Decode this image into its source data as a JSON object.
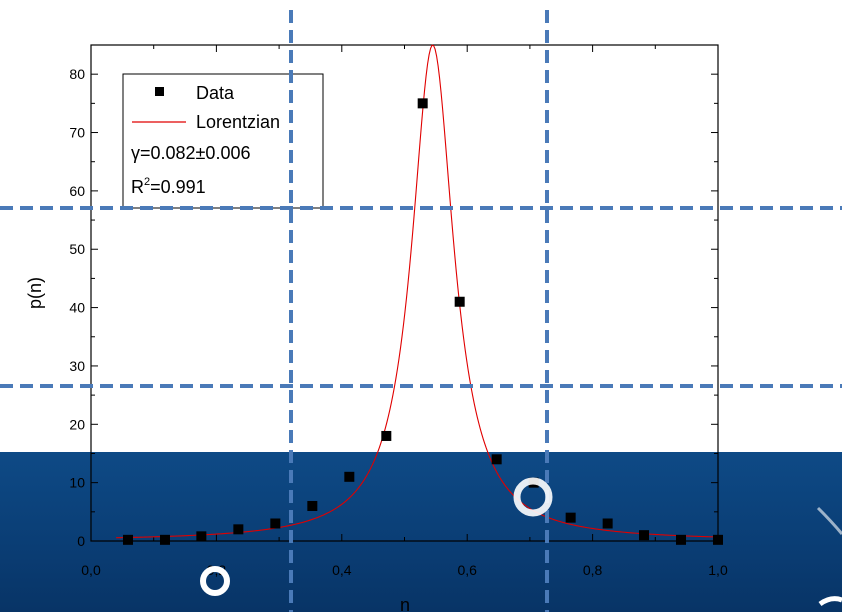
{
  "colors": {
    "slide_band": "#0a3d74",
    "guide_line": "#4a7ab8",
    "fit_line": "#e00000",
    "marker": "#000000"
  },
  "chart_data": {
    "type": "scatter",
    "title": "",
    "xlabel": "n",
    "ylabel": "p(n)",
    "xlim": [
      0.0,
      1.0
    ],
    "ylim": [
      0,
      85
    ],
    "x_ticks": [
      0.0,
      0.2,
      0.4,
      0.6,
      0.8,
      1.0
    ],
    "x_tick_labels": [
      "0,0",
      "0,2",
      "0,4",
      "0,6",
      "0,8",
      "1,0"
    ],
    "y_ticks": [
      0,
      10,
      20,
      30,
      40,
      50,
      60,
      70,
      80
    ],
    "y_tick_labels": [
      "0",
      "10",
      "20",
      "30",
      "40",
      "50",
      "60",
      "70",
      "80"
    ],
    "grid": false,
    "legend_position": "top-left",
    "series": [
      {
        "name": "Data",
        "kind": "markers",
        "x": [
          0.059,
          0.118,
          0.176,
          0.235,
          0.294,
          0.353,
          0.412,
          0.471,
          0.529,
          0.588,
          0.647,
          0.706,
          0.765,
          0.824,
          0.882,
          0.941,
          1.0
        ],
        "y": [
          0.2,
          0.2,
          0.8,
          2,
          3,
          6,
          11,
          18,
          75,
          41,
          14,
          10,
          4,
          3,
          1,
          0.2,
          0.2
        ]
      },
      {
        "name": "Lorentzian",
        "kind": "line",
        "center": 0.545,
        "gamma": 0.082,
        "peak": 85
      }
    ],
    "annotations": [
      "γ=0.082±0.006",
      "R²=0.991"
    ]
  },
  "legend": {
    "data_label": "Data",
    "fit_label": "Lorentzian",
    "gamma_symbol": "γ",
    "gamma_value": "=0.082±0.006",
    "r2_prefix": "R",
    "r2_sup": "2",
    "r2_value": "=0.991"
  }
}
